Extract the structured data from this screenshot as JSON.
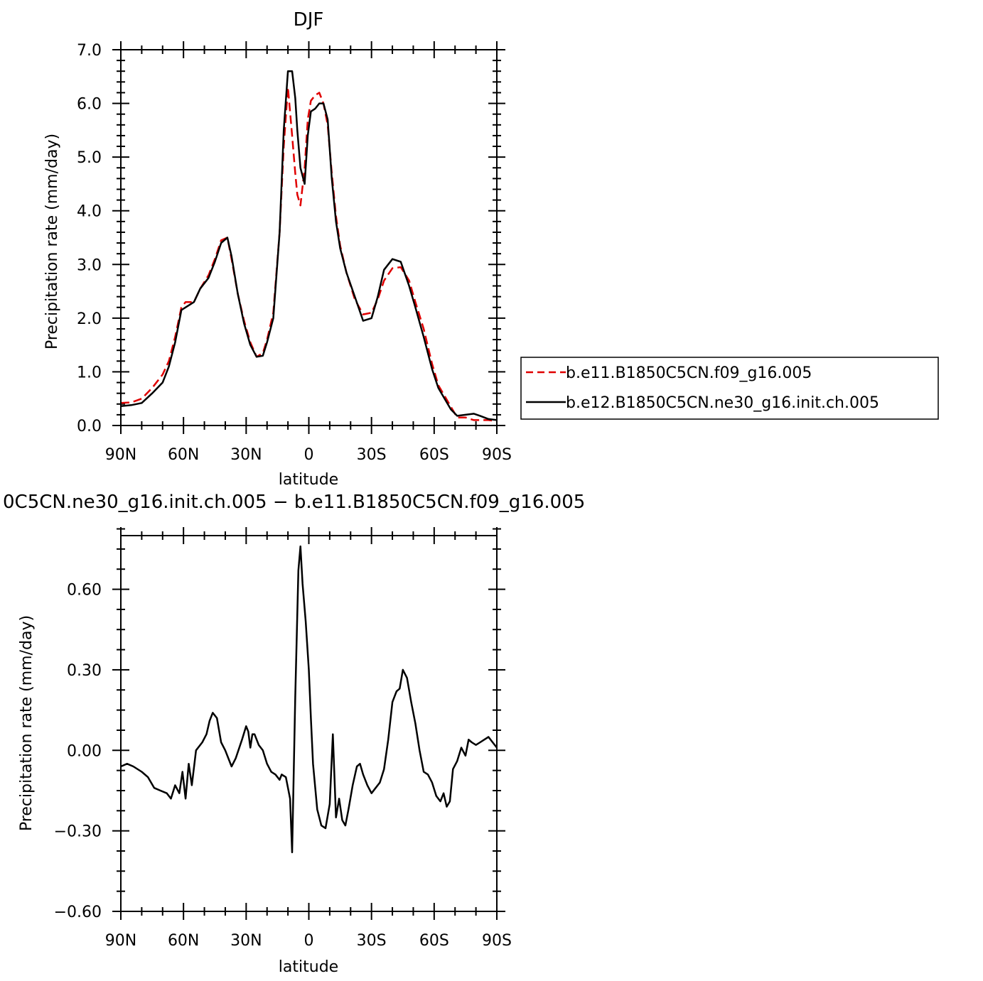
{
  "chart_data": [
    {
      "type": "line",
      "title": "DJF",
      "xlabel": "latitude",
      "ylabel": "Precipitation rate (mm/day)",
      "xlim": [
        90,
        -90
      ],
      "ylim": [
        0,
        7
      ],
      "xticks": [
        {
          "value": 90,
          "label": "90N"
        },
        {
          "value": 60,
          "label": "60N"
        },
        {
          "value": 30,
          "label": "30N"
        },
        {
          "value": 0,
          "label": "0"
        },
        {
          "value": -30,
          "label": "30S"
        },
        {
          "value": -60,
          "label": "60S"
        },
        {
          "value": -90,
          "label": "90S"
        }
      ],
      "yticks": [
        {
          "value": 0,
          "label": "0.0"
        },
        {
          "value": 1,
          "label": "1.0"
        },
        {
          "value": 2,
          "label": "2.0"
        },
        {
          "value": 3,
          "label": "3.0"
        },
        {
          "value": 4,
          "label": "4.0"
        },
        {
          "value": 5,
          "label": "5.0"
        },
        {
          "value": 6,
          "label": "6.0"
        },
        {
          "value": 7,
          "label": "7.0"
        }
      ],
      "legend_position": "right",
      "series": [
        {
          "name": "b.e11.B1850C5CN.f09_g16.005",
          "color": "#e00000",
          "dash": "dashed",
          "x": [
            90,
            85,
            80,
            75,
            72,
            70,
            67,
            64,
            61,
            59,
            55,
            52,
            48,
            45,
            42,
            39,
            37,
            34,
            31,
            28,
            25,
            22,
            20,
            17,
            14,
            12,
            10,
            8,
            6.5,
            5.5,
            4,
            2,
            0.5,
            -1,
            -3,
            -5,
            -7,
            -9,
            -11,
            -13,
            -15,
            -18,
            -22,
            -26,
            -30,
            -33,
            -36,
            -40,
            -44,
            -48,
            -51,
            -55,
            -59,
            -62,
            -65,
            -68,
            -71,
            -75,
            -79,
            -82,
            -86,
            -90
          ],
          "y": [
            0.42,
            0.43,
            0.5,
            0.7,
            0.85,
            0.95,
            1.2,
            1.65,
            2.2,
            2.3,
            2.3,
            2.55,
            2.8,
            3.1,
            3.45,
            3.5,
            3.1,
            2.45,
            1.95,
            1.55,
            1.28,
            1.35,
            1.6,
            2.1,
            3.6,
            5.2,
            6.3,
            5.4,
            4.7,
            4.3,
            4.1,
            4.8,
            5.7,
            6.05,
            6.15,
            6.2,
            6.0,
            5.6,
            4.7,
            3.9,
            3.35,
            2.85,
            2.35,
            2.07,
            2.1,
            2.35,
            2.7,
            2.93,
            2.95,
            2.7,
            2.3,
            1.8,
            1.15,
            0.75,
            0.55,
            0.35,
            0.15,
            0.15,
            0.1,
            0.1,
            0.1,
            0.08
          ]
        },
        {
          "name": "b.e12.B1850C5CN.ne30_g16.init.ch.005",
          "color": "#000000",
          "dash": "solid",
          "x": [
            90,
            85,
            80,
            75,
            72,
            70,
            67,
            64,
            61,
            59,
            55,
            52,
            48,
            45,
            42,
            39,
            37,
            34,
            31,
            28,
            25,
            22,
            20,
            17,
            14,
            12,
            10,
            8,
            6.5,
            5.5,
            4,
            2,
            0.5,
            -1,
            -3,
            -5,
            -7,
            -9,
            -11,
            -13,
            -15,
            -18,
            -22,
            -26,
            -30,
            -33,
            -36,
            -40,
            -44,
            -48,
            -51,
            -55,
            -59,
            -62,
            -65,
            -68,
            -71,
            -75,
            -79,
            -82,
            -86,
            -90
          ],
          "y": [
            0.36,
            0.38,
            0.42,
            0.6,
            0.72,
            0.8,
            1.1,
            1.55,
            2.15,
            2.2,
            2.3,
            2.55,
            2.75,
            3.05,
            3.4,
            3.5,
            3.15,
            2.45,
            1.9,
            1.5,
            1.28,
            1.3,
            1.55,
            2.0,
            3.6,
            5.5,
            6.6,
            6.6,
            6.1,
            5.5,
            4.8,
            4.5,
            5.4,
            5.85,
            5.9,
            6.0,
            6.0,
            5.7,
            4.6,
            3.8,
            3.3,
            2.85,
            2.4,
            1.95,
            2.0,
            2.4,
            2.9,
            3.1,
            3.05,
            2.6,
            2.2,
            1.65,
            1.05,
            0.7,
            0.5,
            0.3,
            0.18,
            0.2,
            0.22,
            0.18,
            0.12,
            0.1
          ]
        }
      ]
    },
    {
      "type": "line",
      "title": "0C5CN.ne30_g16.init.ch.005 − b.e11.B1850C5CN.f09_g16.005",
      "xlabel": "latitude",
      "ylabel": "Precipitation rate (mm/day)",
      "xlim": [
        90,
        -90
      ],
      "ylim": [
        -0.6,
        0.8
      ],
      "xticks": [
        {
          "value": 90,
          "label": "90N"
        },
        {
          "value": 60,
          "label": "60N"
        },
        {
          "value": 30,
          "label": "30N"
        },
        {
          "value": 0,
          "label": "0"
        },
        {
          "value": -30,
          "label": "30S"
        },
        {
          "value": -60,
          "label": "60S"
        },
        {
          "value": -90,
          "label": "90S"
        }
      ],
      "yticks": [
        {
          "value": -0.6,
          "label": "−0.60"
        },
        {
          "value": -0.3,
          "label": "−0.30"
        },
        {
          "value": 0,
          "label": "0.00"
        },
        {
          "value": 0.3,
          "label": "0.30"
        },
        {
          "value": 0.6,
          "label": "0.60"
        }
      ],
      "series": [
        {
          "color": "#000000",
          "dash": "solid",
          "x": [
            90,
            87,
            84,
            80,
            77,
            74,
            71,
            68,
            66,
            64,
            62,
            60.5,
            59,
            57.5,
            56,
            54,
            51,
            49,
            47.5,
            46,
            44,
            42,
            40,
            37,
            35,
            32,
            30,
            29,
            28,
            27,
            26,
            24,
            22,
            20,
            18,
            16,
            14,
            13,
            11,
            9,
            8,
            6.5,
            5,
            4,
            3,
            1.5,
            0,
            -1,
            -2,
            -4,
            -6,
            -8,
            -10,
            -11.5,
            -13,
            -14.5,
            -16,
            -17.5,
            -19,
            -21,
            -23,
            -24.5,
            -26,
            -28,
            -30,
            -32,
            -34,
            -36,
            -38,
            -40,
            -42,
            -43.5,
            -45,
            -47,
            -49,
            -51,
            -53,
            -55,
            -57,
            -59,
            -61,
            -63,
            -64.5,
            -66,
            -67.5,
            -69,
            -71,
            -73,
            -75,
            -76.5,
            -78,
            -80,
            -82,
            -84,
            -86,
            -88,
            -90
          ],
          "y": [
            -0.06,
            -0.05,
            -0.06,
            -0.08,
            -0.1,
            -0.14,
            -0.15,
            -0.16,
            -0.18,
            -0.13,
            -0.16,
            -0.08,
            -0.18,
            -0.05,
            -0.13,
            0.0,
            0.03,
            0.06,
            0.11,
            0.14,
            0.12,
            0.03,
            0.0,
            -0.06,
            -0.03,
            0.04,
            0.09,
            0.07,
            0.01,
            0.06,
            0.06,
            0.02,
            0.0,
            -0.05,
            -0.08,
            -0.09,
            -0.11,
            -0.09,
            -0.1,
            -0.18,
            -0.38,
            0.2,
            0.67,
            0.76,
            0.62,
            0.48,
            0.3,
            0.12,
            -0.05,
            -0.22,
            -0.28,
            -0.29,
            -0.2,
            0.06,
            -0.25,
            -0.18,
            -0.26,
            -0.28,
            -0.22,
            -0.13,
            -0.06,
            -0.05,
            -0.09,
            -0.13,
            -0.16,
            -0.14,
            -0.12,
            -0.07,
            0.04,
            0.18,
            0.22,
            0.23,
            0.3,
            0.27,
            0.18,
            0.1,
            0.0,
            -0.08,
            -0.09,
            -0.12,
            -0.17,
            -0.19,
            -0.16,
            -0.21,
            -0.19,
            -0.07,
            -0.04,
            0.01,
            -0.02,
            0.04,
            0.03,
            0.02,
            0.03,
            0.04,
            0.05,
            0.03,
            0.01
          ]
        }
      ]
    }
  ]
}
